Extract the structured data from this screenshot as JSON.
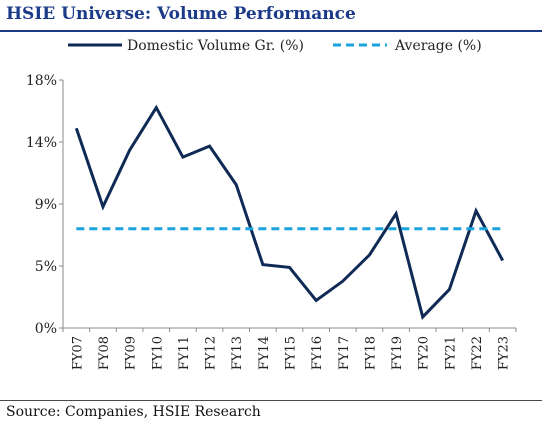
{
  "title": "HSIE Universe: Volume Performance",
  "source": "Source: Companies, HSIE Research",
  "chart_data": {
    "type": "line",
    "categories": [
      "FY07",
      "FY08",
      "FY09",
      "FY10",
      "FY11",
      "FY12",
      "FY13",
      "FY14",
      "FY15",
      "FY16",
      "FY17",
      "FY18",
      "FY19",
      "FY20",
      "FY21",
      "FY22",
      "FY23"
    ],
    "series": [
      {
        "name": "Domestic Volume Gr. (%)",
        "color": "#0f2a55",
        "style": "solid",
        "values": [
          14.5,
          8.8,
          12.9,
          16.0,
          12.4,
          13.2,
          10.4,
          4.6,
          4.4,
          2.0,
          3.4,
          5.3,
          8.3,
          0.8,
          2.8,
          8.5,
          4.9
        ]
      },
      {
        "name": "Average (%)",
        "color": "#1aa3dc",
        "style": "dashed",
        "values": [
          7.2,
          7.2,
          7.2,
          7.2,
          7.2,
          7.2,
          7.2,
          7.2,
          7.2,
          7.2,
          7.2,
          7.2,
          7.2,
          7.2,
          7.2,
          7.2,
          7.2
        ]
      }
    ],
    "yticks": [
      {
        "value": 0,
        "label": "0%"
      },
      {
        "value": 4.5,
        "label": "5%"
      },
      {
        "value": 9,
        "label": "9%"
      },
      {
        "value": 13.5,
        "label": "14%"
      },
      {
        "value": 18,
        "label": "18%"
      }
    ],
    "ylim": [
      0,
      18
    ],
    "grid": false,
    "legend": "top"
  }
}
